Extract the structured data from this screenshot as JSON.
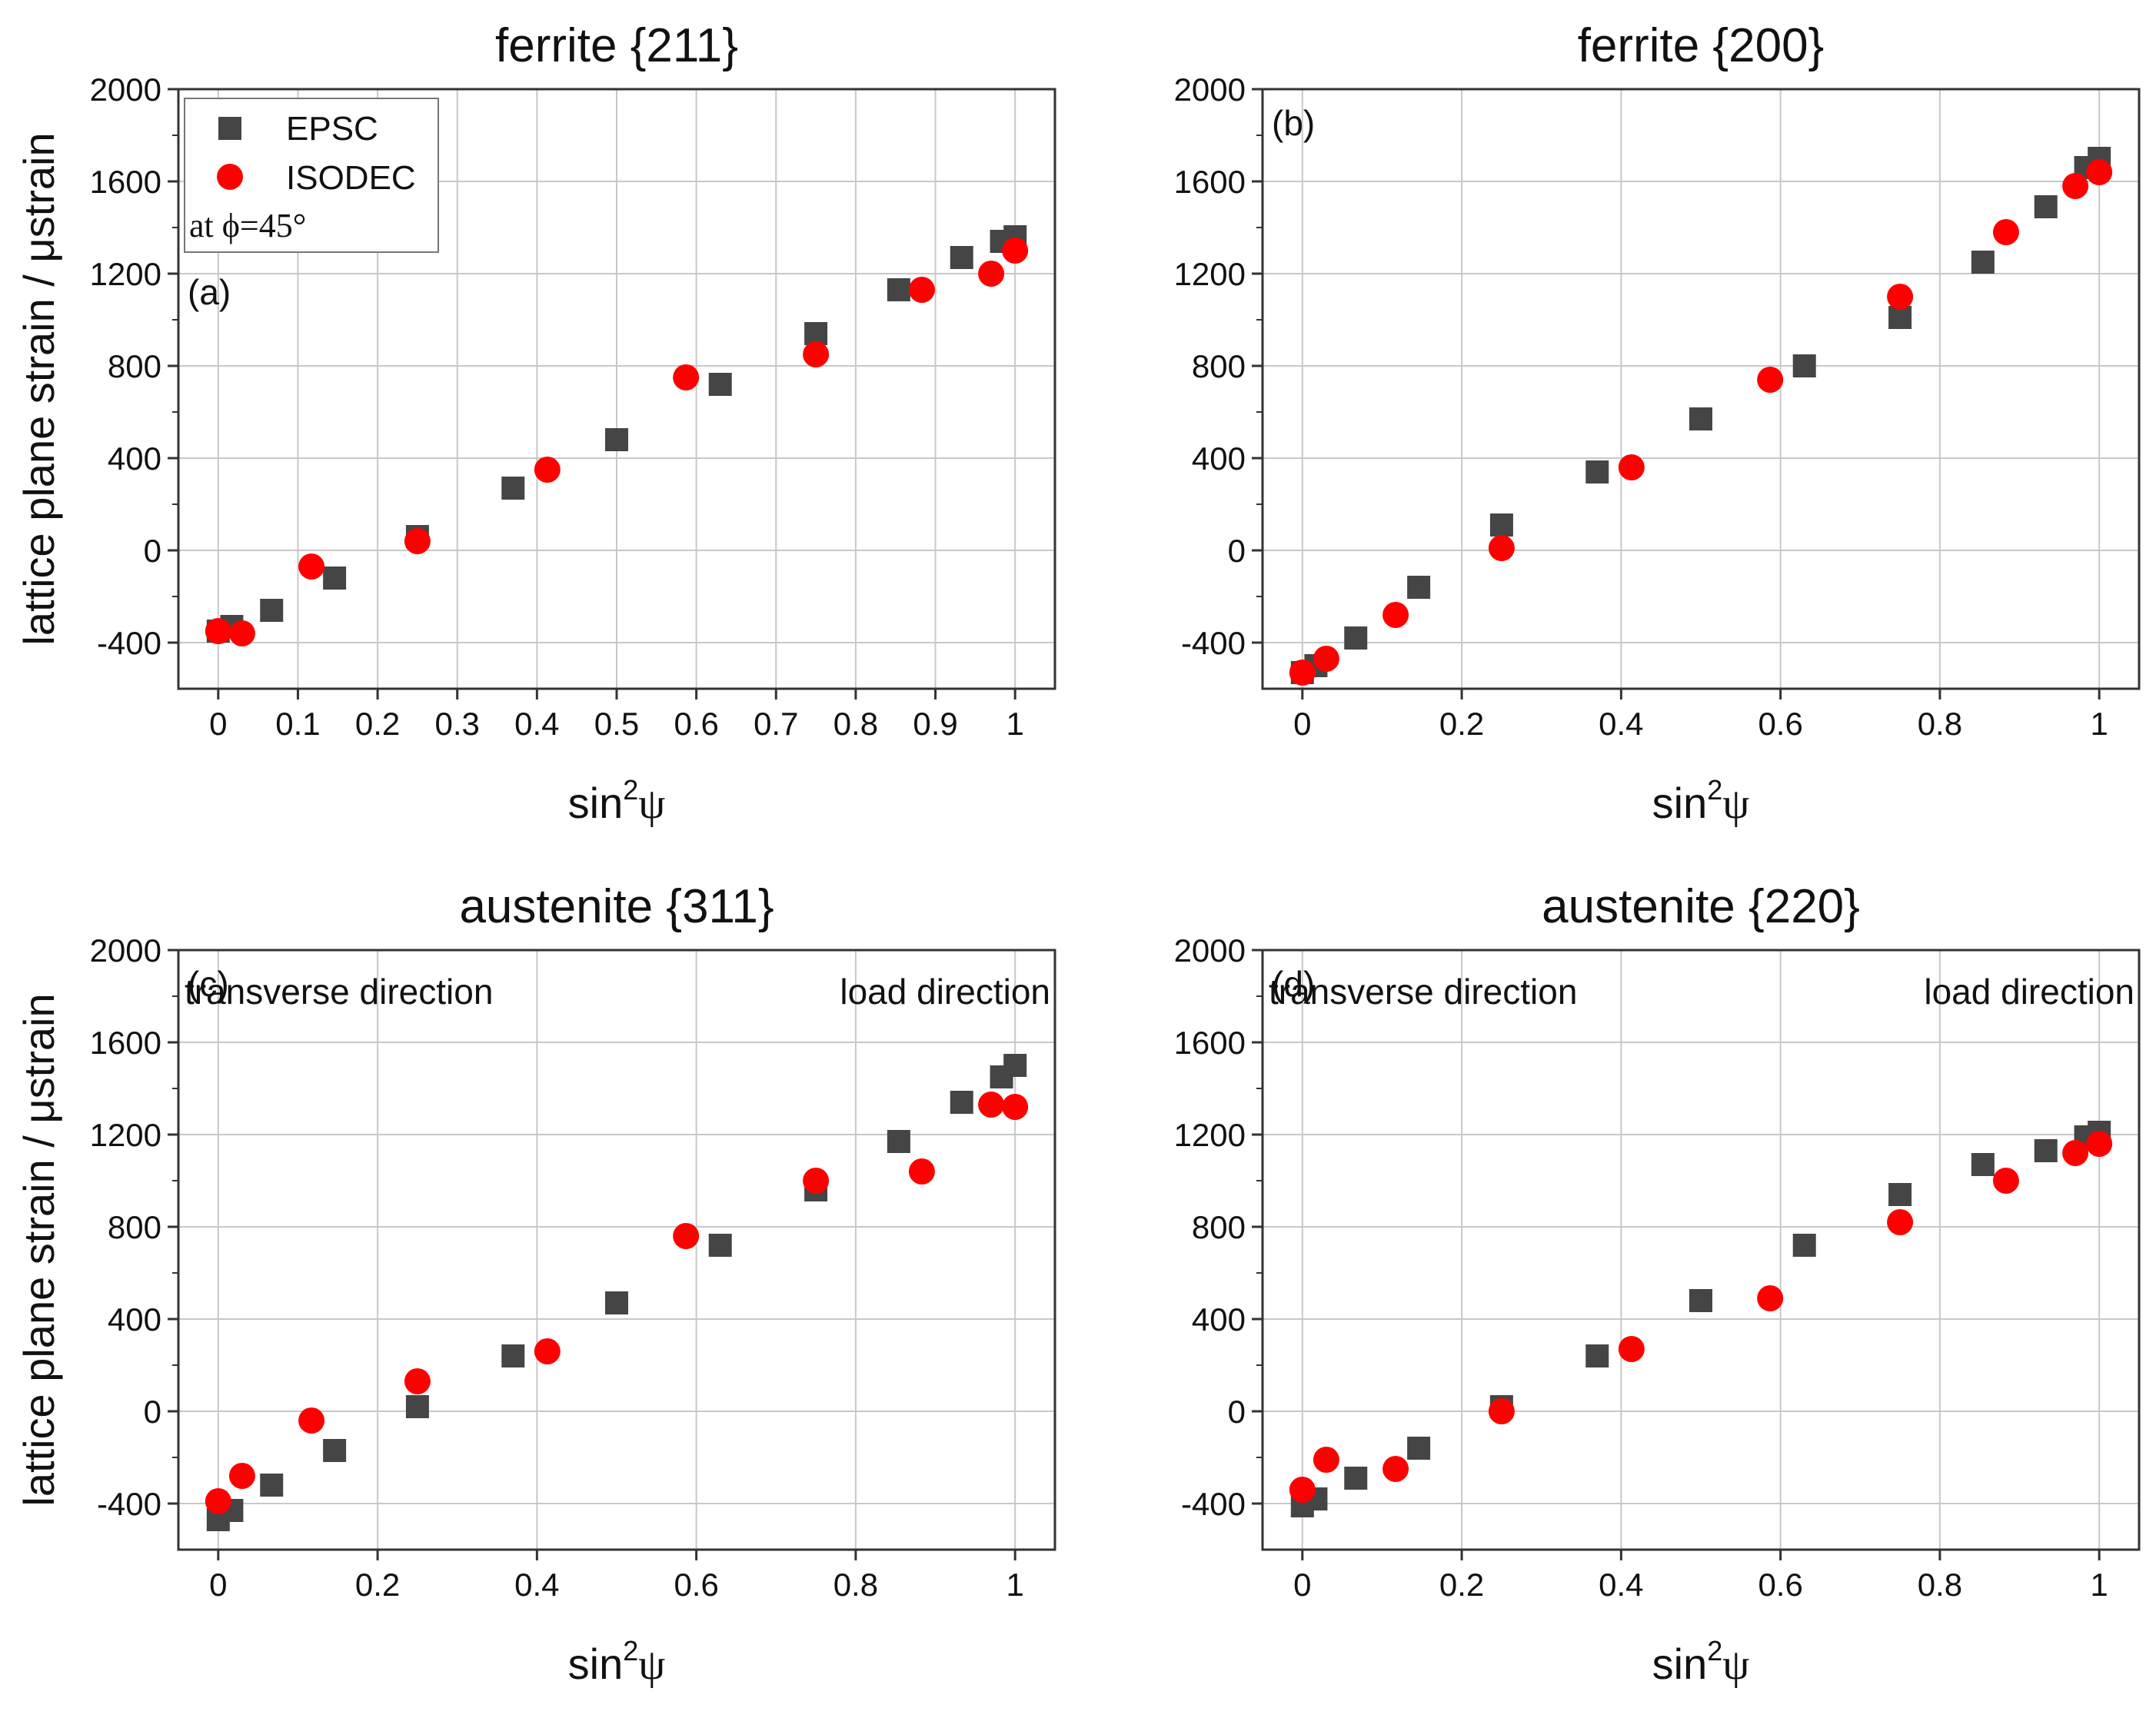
{
  "figure": {
    "colors": {
      "EPSC": "#454545",
      "ISODEC": "#ff0000",
      "frame": "#333333",
      "grid": "#c8c8c8"
    },
    "legend": {
      "items": [
        "EPSC",
        "ISODEC"
      ],
      "note": "at ϕ=45°",
      "placement": "top-left of panel (a)"
    }
  },
  "chart_data": [
    {
      "type": "scatter",
      "panel": "(a)",
      "title": "ferrite {211}",
      "xlabel_base": "sin",
      "xlabel_sup": "2",
      "xlabel_psi": "ψ",
      "ylabel": "lattice plane strain / μstrain",
      "xlim": [
        -0.05,
        1.05
      ],
      "ylim": [
        -600,
        2000
      ],
      "xticks": [
        0,
        0.1,
        0.2,
        0.3,
        0.4,
        0.5,
        0.6,
        0.7,
        0.8,
        0.9,
        1
      ],
      "xtick_labels": [
        "0",
        "0.1",
        "0.2",
        "0.3",
        "0.4",
        "0.5",
        "0.6",
        "0.7",
        "0.8",
        "0.9",
        "1"
      ],
      "yticks": [
        -400,
        0,
        400,
        800,
        1200,
        1600,
        2000
      ],
      "ytick_labels": [
        "-400",
        "0",
        "400",
        "800",
        "1200",
        "1600",
        "2000"
      ],
      "annotations": {
        "panel_label": "(a)"
      },
      "show_legend": true,
      "series": [
        {
          "name": "EPSC",
          "marker": "square",
          "x": [
            0,
            0.017,
            0.067,
            0.146,
            0.25,
            0.37,
            0.5,
            0.63,
            0.75,
            0.854,
            0.933,
            0.983,
            1
          ],
          "y": [
            -350,
            -330,
            -260,
            -120,
            60,
            270,
            480,
            720,
            940,
            1130,
            1270,
            1340,
            1360
          ]
        },
        {
          "name": "ISODEC",
          "marker": "circle",
          "x": [
            0,
            0.03,
            0.117,
            0.25,
            0.413,
            0.587,
            0.75,
            0.883,
            0.97,
            1
          ],
          "y": [
            -350,
            -360,
            -70,
            40,
            350,
            750,
            850,
            1130,
            1200,
            1300
          ]
        }
      ]
    },
    {
      "type": "scatter",
      "panel": "(b)",
      "title": "ferrite {200}",
      "xlabel_base": "sin",
      "xlabel_sup": "2",
      "xlabel_psi": "ψ",
      "ylabel": "",
      "xlim": [
        -0.05,
        1.05
      ],
      "ylim": [
        -600,
        2000
      ],
      "xticks": [
        0,
        0.2,
        0.4,
        0.6,
        0.8,
        1
      ],
      "xtick_labels": [
        "0",
        "0.2",
        "0.4",
        "0.6",
        "0.8",
        "1"
      ],
      "yticks": [
        -400,
        0,
        400,
        800,
        1200,
        1600,
        2000
      ],
      "ytick_labels": [
        "-400",
        "0",
        "400",
        "800",
        "1200",
        "1600",
        "2000"
      ],
      "annotations": {
        "panel_label": "(b)"
      },
      "show_legend": false,
      "series": [
        {
          "name": "EPSC",
          "marker": "square",
          "x": [
            0,
            0.017,
            0.067,
            0.146,
            0.25,
            0.37,
            0.5,
            0.63,
            0.75,
            0.854,
            0.933,
            0.983,
            1
          ],
          "y": [
            -530,
            -500,
            -380,
            -160,
            110,
            340,
            570,
            800,
            1010,
            1250,
            1490,
            1660,
            1700
          ]
        },
        {
          "name": "ISODEC",
          "marker": "circle",
          "x": [
            0,
            0.03,
            0.117,
            0.25,
            0.413,
            0.587,
            0.75,
            0.883,
            0.97,
            1
          ],
          "y": [
            -530,
            -470,
            -280,
            10,
            360,
            740,
            1100,
            1380,
            1580,
            1640
          ]
        }
      ]
    },
    {
      "type": "scatter",
      "panel": "(c)",
      "title": "austenite {311}",
      "xlabel_base": "sin",
      "xlabel_sup": "2",
      "xlabel_psi": "ψ",
      "ylabel": "lattice plane strain / μstrain",
      "xlim": [
        -0.05,
        1.05
      ],
      "ylim": [
        -600,
        2000
      ],
      "xticks": [
        0,
        0.2,
        0.4,
        0.6,
        0.8,
        1
      ],
      "xtick_labels": [
        "0",
        "0.2",
        "0.4",
        "0.6",
        "0.8",
        "1"
      ],
      "yticks": [
        -400,
        0,
        400,
        800,
        1200,
        1600,
        2000
      ],
      "ytick_labels": [
        "-400",
        "0",
        "400",
        "800",
        "1200",
        "1600",
        "2000"
      ],
      "annotations": {
        "panel_label": "(c)",
        "left": "transverse direction",
        "right": "load direction"
      },
      "show_legend": false,
      "series": [
        {
          "name": "EPSC",
          "marker": "square",
          "x": [
            0,
            0.017,
            0.067,
            0.146,
            0.25,
            0.37,
            0.5,
            0.63,
            0.75,
            0.854,
            0.933,
            0.983,
            1
          ],
          "y": [
            -470,
            -430,
            -320,
            -170,
            20,
            240,
            470,
            720,
            960,
            1170,
            1340,
            1450,
            1500
          ]
        },
        {
          "name": "ISODEC",
          "marker": "circle",
          "x": [
            0,
            0.03,
            0.117,
            0.25,
            0.413,
            0.587,
            0.75,
            0.883,
            0.97,
            1
          ],
          "y": [
            -390,
            -280,
            -40,
            130,
            260,
            760,
            1000,
            1040,
            1330,
            1320
          ]
        }
      ]
    },
    {
      "type": "scatter",
      "panel": "(d)",
      "title": "austenite {220}",
      "xlabel_base": "sin",
      "xlabel_sup": "2",
      "xlabel_psi": "ψ",
      "ylabel": "",
      "xlim": [
        -0.05,
        1.05
      ],
      "ylim": [
        -600,
        2000
      ],
      "xticks": [
        0,
        0.2,
        0.4,
        0.6,
        0.8,
        1
      ],
      "xtick_labels": [
        "0",
        "0.2",
        "0.4",
        "0.6",
        "0.8",
        "1"
      ],
      "yticks": [
        -400,
        0,
        400,
        800,
        1200,
        1600,
        2000
      ],
      "ytick_labels": [
        "-400",
        "0",
        "400",
        "800",
        "1200",
        "1600",
        "2000"
      ],
      "annotations": {
        "panel_label": "(d)",
        "left": "transverse direction",
        "right": "load direction"
      },
      "show_legend": false,
      "series": [
        {
          "name": "EPSC",
          "marker": "square",
          "x": [
            0,
            0.017,
            0.067,
            0.146,
            0.25,
            0.37,
            0.5,
            0.63,
            0.75,
            0.854,
            0.933,
            0.983,
            1
          ],
          "y": [
            -410,
            -380,
            -290,
            -160,
            20,
            240,
            480,
            720,
            940,
            1070,
            1130,
            1190,
            1210
          ]
        },
        {
          "name": "ISODEC",
          "marker": "circle",
          "x": [
            0,
            0.03,
            0.117,
            0.25,
            0.413,
            0.587,
            0.75,
            0.883,
            0.97,
            1
          ],
          "y": [
            -340,
            -210,
            -250,
            0,
            270,
            490,
            820,
            1000,
            1120,
            1160
          ]
        }
      ]
    }
  ]
}
